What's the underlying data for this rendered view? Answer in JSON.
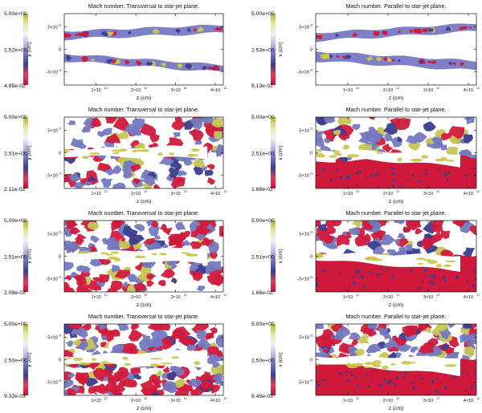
{
  "figure": {
    "description_units": "Simulation snapshots of Mach number maps",
    "colorbar_colors": [
      "#c8102e",
      "#e83a5a",
      "#3a3f8f",
      "#6a6fc0",
      "#b9bbe6",
      "#f2f0f7",
      "#e7e6a0",
      "#b5b431"
    ]
  },
  "chart_data": [
    {
      "type": "heatmap",
      "title": "Mach number. Transversal to star-jet plane.",
      "xlabel": "z (cm)",
      "ylabel": "y (cm)",
      "xticks": [
        "1×10",
        "2×10",
        "3×10",
        "4×10"
      ],
      "xtick_exp": "12",
      "yticks": [
        "5×10",
        "0",
        "-5×10"
      ],
      "ytick_exp": "11",
      "xlim": [
        200000000000.0,
        4200000000000.0
      ],
      "ylim": [
        -800000000000.0,
        800000000000.0
      ],
      "colorbar": {
        "max": "5.00e+00",
        "mid": "2.52e+00",
        "min": "4.85e-02"
      },
      "panel": "row1-left",
      "state": "early",
      "orientation": "transversal"
    },
    {
      "type": "heatmap",
      "title": "Mach number. Parallel to star-jet plane.",
      "xlabel": "z (cm)",
      "ylabel": "x (cm)",
      "xticks": [
        "1×10",
        "2×10",
        "3×10",
        "4×10"
      ],
      "xtick_exp": "12",
      "yticks": [
        "5×10",
        "0",
        "-5×10"
      ],
      "ytick_exp": "11",
      "xlim": [
        200000000000.0,
        4200000000000.0
      ],
      "ylim": [
        -800000000000.0,
        800000000000.0
      ],
      "colorbar": {
        "max": "5.00e+00",
        "mid": "2.53e+00",
        "min": "5.13e-02"
      },
      "panel": "row1-right",
      "state": "early",
      "orientation": "parallel"
    },
    {
      "type": "heatmap",
      "title": "Mach number. Transversal to star-jet plane.",
      "xlabel": "z (cm)",
      "ylabel": "y (cm)",
      "xticks": [
        "1×10",
        "2×10",
        "3×10",
        "4×10"
      ],
      "xtick_exp": "12",
      "yticks": [
        "5×10",
        "0",
        "-5×10"
      ],
      "ytick_exp": "11",
      "xlim": [
        200000000000.0,
        4200000000000.0
      ],
      "ylim": [
        -800000000000.0,
        800000000000.0
      ],
      "colorbar": {
        "max": "5.00e+00",
        "mid": "2.51e+00",
        "min": "2.11e-02"
      },
      "panel": "row2-left",
      "state": "mid",
      "orientation": "transversal"
    },
    {
      "type": "heatmap",
      "title": "Mach number. Parallel to star-jet plane.",
      "xlabel": "z (cm)",
      "ylabel": "x (cm)",
      "xticks": [
        "1×10",
        "2×10",
        "3×10",
        "4×10"
      ],
      "xtick_exp": "12",
      "yticks": [
        "5×10",
        "0",
        "-5×10"
      ],
      "ytick_exp": "11",
      "xlim": [
        200000000000.0,
        4200000000000.0
      ],
      "ylim": [
        -800000000000.0,
        800000000000.0
      ],
      "colorbar": {
        "max": "5.00e+00",
        "mid": "2.51e+00",
        "min": "1.68e-02"
      },
      "panel": "row2-right",
      "state": "mid",
      "orientation": "parallel"
    },
    {
      "type": "heatmap",
      "title": "Mach number. Transversal to star-jet plane.",
      "xlabel": "z (cm)",
      "ylabel": "y (cm)",
      "xticks": [
        "1×10",
        "2×10",
        "3×10",
        "4×10"
      ],
      "xtick_exp": "12",
      "yticks": [
        "5×10",
        "0",
        "-5×10"
      ],
      "ytick_exp": "11",
      "xlim": [
        200000000000.0,
        4200000000000.0
      ],
      "ylim": [
        -800000000000.0,
        800000000000.0
      ],
      "colorbar": {
        "max": "5.00e+00",
        "mid": "2.51e+00",
        "min": "2.08e-02"
      },
      "panel": "row3-left",
      "state": "late",
      "orientation": "transversal"
    },
    {
      "type": "heatmap",
      "title": "Mach number. Parallel to star-jet plane.",
      "xlabel": "z (cm)",
      "ylabel": "x (cm)",
      "xticks": [
        "1×10",
        "2×10",
        "3×10",
        "4×10"
      ],
      "xtick_exp": "12",
      "yticks": [
        "5×10",
        "0",
        "-5×10"
      ],
      "ytick_exp": "11",
      "xlim": [
        200000000000.0,
        4200000000000.0
      ],
      "ylim": [
        -800000000000.0,
        800000000000.0
      ],
      "colorbar": {
        "max": "5.00e+00",
        "mid": "2.51e+00",
        "min": "1.66e-02"
      },
      "panel": "row3-right",
      "state": "late",
      "orientation": "parallel"
    },
    {
      "type": "heatmap",
      "title": "Mach number. Transversal to star-jet plane.",
      "xlabel": "z (cm)",
      "ylabel": "y (cm)",
      "xticks": [
        "1×10",
        "2×10",
        "3×10",
        "4×10"
      ],
      "xtick_exp": "12",
      "yticks": [
        "5×10",
        "0",
        "-5×10"
      ],
      "ytick_exp": "11",
      "xlim": [
        200000000000.0,
        4200000000000.0
      ],
      "ylim": [
        -800000000000.0,
        800000000000.0
      ],
      "colorbar": {
        "max": "5.00e+00",
        "mid": "2.50e+00",
        "min": "9.32e-03"
      },
      "panel": "row4-left",
      "state": "final",
      "orientation": "transversal"
    },
    {
      "type": "heatmap",
      "title": "Mach number. Parallel to star-jet plane.",
      "xlabel": "z (cm)",
      "ylabel": "x (cm)",
      "xticks": [
        "1×10",
        "2×10",
        "3×10",
        "4×10"
      ],
      "xtick_exp": "12",
      "yticks": [
        "5×10",
        "0",
        "-5×10"
      ],
      "ytick_exp": "11",
      "xlim": [
        200000000000.0,
        4200000000000.0
      ],
      "ylim": [
        -800000000000.0,
        800000000000.0
      ],
      "colorbar": {
        "max": "5.00e+00",
        "mid": "2.50e+00",
        "min": "8.49e-03"
      },
      "panel": "row4-right",
      "state": "final",
      "orientation": "parallel"
    }
  ]
}
